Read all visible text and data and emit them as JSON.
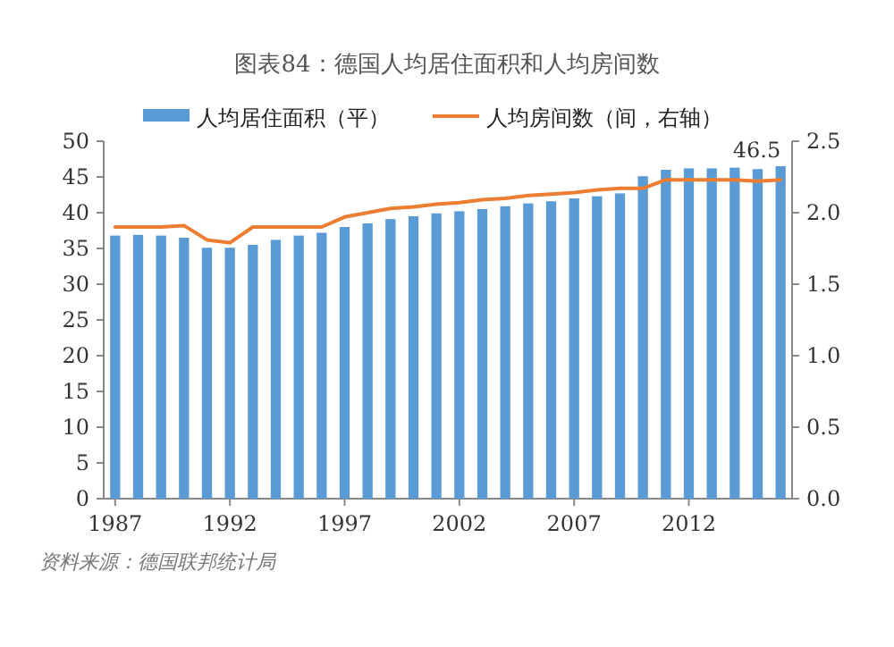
{
  "chart_data": {
    "type": "bar",
    "title": "图表84：德国人均居住面积和人均房间数",
    "categories": [
      "1987",
      null,
      null,
      null,
      null,
      "1992",
      null,
      null,
      null,
      null,
      "1997",
      null,
      null,
      null,
      null,
      "2002",
      null,
      null,
      null,
      null,
      "2007",
      null,
      null,
      null,
      null,
      "2012",
      null,
      null,
      null,
      null
    ],
    "series": [
      {
        "name": "人均居住面积（平）",
        "color": "#5b9bd5",
        "values": [
          36.8,
          36.9,
          36.8,
          36.5,
          35.1,
          35.1,
          35.5,
          36.2,
          36.8,
          37.2,
          38.0,
          38.5,
          39.1,
          39.5,
          39.9,
          40.2,
          40.5,
          40.9,
          41.3,
          41.6,
          42.0,
          42.3,
          42.7,
          45.1,
          46.0,
          46.2,
          46.2,
          46.3,
          46.1,
          46.5
        ],
        "value_labels": [
          null,
          null,
          null,
          null,
          null,
          null,
          null,
          null,
          null,
          null,
          null,
          null,
          null,
          null,
          null,
          null,
          null,
          null,
          null,
          null,
          null,
          null,
          null,
          null,
          null,
          null,
          null,
          null,
          null,
          "46.5"
        ]
      },
      {
        "name": "人均房间数（间，右轴）",
        "type": "line",
        "axis": "y2",
        "color": "#ed7d31",
        "values": [
          1.9,
          1.9,
          1.9,
          1.91,
          1.81,
          1.79,
          1.9,
          1.9,
          1.9,
          1.9,
          1.97,
          2.0,
          2.03,
          2.04,
          2.06,
          2.07,
          2.09,
          2.1,
          2.12,
          2.13,
          2.14,
          2.16,
          2.17,
          2.17,
          2.23,
          2.23,
          2.23,
          2.23,
          2.22,
          2.23
        ]
      }
    ],
    "ylim": [
      0,
      50
    ],
    "yticks": [
      0,
      5,
      10,
      15,
      20,
      25,
      30,
      35,
      40,
      45,
      50
    ],
    "y2lim": [
      0,
      2.5
    ],
    "y2ticks": [
      {
        "value": 0,
        "label": "0.0"
      },
      {
        "value": 0.5,
        "label": "0.5"
      },
      {
        "value": 1,
        "label": "1.0"
      },
      {
        "value": 1.5,
        "label": "1.5"
      },
      {
        "value": 2,
        "label": "2.0"
      },
      {
        "value": 2.5,
        "label": "2.5"
      }
    ],
    "legend": "top",
    "grid": false,
    "annotations": [
      "资料来源：德国联邦统计局"
    ]
  }
}
